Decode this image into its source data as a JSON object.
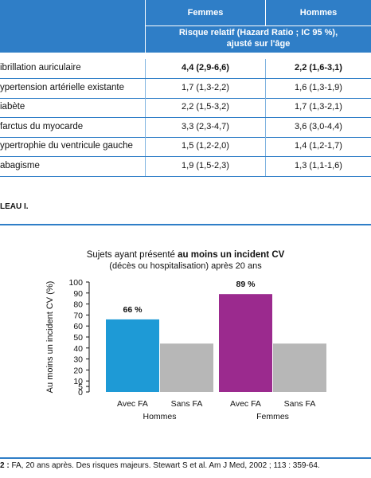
{
  "table": {
    "header": {
      "col1": "Femmes",
      "col2": "Hommes",
      "subheader_line1": "Risque relatif (Hazard Ratio ; IC 95 %),",
      "subheader_line2": "ajusté sur l'âge"
    },
    "rows": [
      {
        "label": "ibrillation auriculaire",
        "femmes": "4,4 (2,9-6,6)",
        "hommes": "2,2 (1,6-3,1)"
      },
      {
        "label": "ypertension artérielle existante",
        "femmes": "1,7 (1,3-2,2)",
        "hommes": "1,6 (1,3-1,9)"
      },
      {
        "label": "iabète",
        "femmes": "2,2 (1,5-3,2)",
        "hommes": "1,7 (1,3-2,1)"
      },
      {
        "label": "farctus du myocarde",
        "femmes": "3,3 (2,3-4,7)",
        "hommes": "3,6 (3,0-4,4)"
      },
      {
        "label": "ypertrophie du ventricule gauche",
        "femmes": "1,5 (1,2-2,0)",
        "hommes": "1,4 (1,2-1,7)"
      },
      {
        "label": "abagisme",
        "femmes": "1,9 (1,5-2,3)",
        "hommes": "1,3 (1,1-1,6)"
      }
    ],
    "caption": "LEAU I."
  },
  "figure": {
    "caption_num": "2 :",
    "caption_text": " FA, 20 ans après. Des risques majeurs. Stewart S et al. Am J Med, 2002 ; 113 : 359-64."
  },
  "colors": {
    "header_blue": "#2f7ec7",
    "bar_blue": "#1e9ad6",
    "bar_purple": "#9b2a8e",
    "bar_gray": "#b7b7b7"
  },
  "chart_data": {
    "type": "bar",
    "title_pre": "Sujets ayant présenté ",
    "title_bold": "au moins un incident CV",
    "subtitle": "(décès ou hospitalisation) après 20 ans",
    "ylabel": "Au moins un incident CV (%)",
    "ylim": [
      0,
      100
    ],
    "yticks": [
      0,
      5,
      10,
      20,
      30,
      40,
      50,
      60,
      70,
      80,
      90,
      100
    ],
    "bars": [
      {
        "label": "Avec FA",
        "group": "Hommes",
        "value": 66,
        "color": "#1e9ad6",
        "data_label": "66 %"
      },
      {
        "label": "Sans FA",
        "group": "Hommes",
        "value": 44,
        "color": "#b7b7b7",
        "data_label": ""
      },
      {
        "label": "Avec FA",
        "group": "Femmes",
        "value": 89,
        "color": "#9b2a8e",
        "data_label": "89 %"
      },
      {
        "label": "Sans FA",
        "group": "Femmes",
        "value": 44,
        "color": "#b7b7b7",
        "data_label": ""
      }
    ],
    "groups": [
      "Hommes",
      "Femmes"
    ],
    "grid": false
  }
}
